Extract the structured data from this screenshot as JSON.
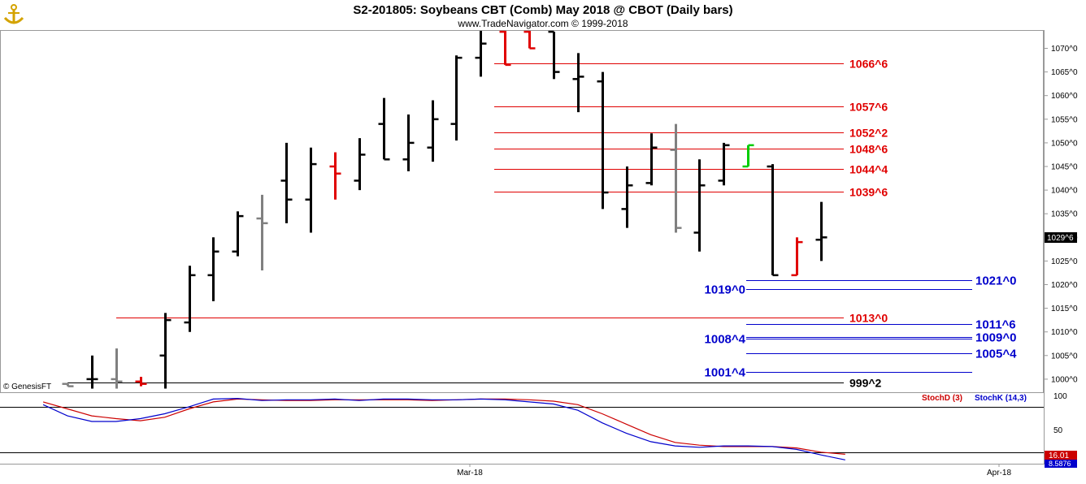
{
  "header": {
    "title": "S2-201805:  Soybeans CBT (Comb) May 2018 @ CBOT  (Daily bars)",
    "subtitle": "www.TradeNavigator.com © 1999-2018",
    "logo_icon": "anchor-logo-icon"
  },
  "watermark": "© GenesisFT",
  "price_axis": {
    "ticks": [
      "1070^0",
      "1065^0",
      "1060^0",
      "1055^0",
      "1050^0",
      "1045^0",
      "1040^0",
      "1035^0",
      "1030^0",
      "1025^0",
      "1020^0",
      "1015^0",
      "1010^0",
      "1005^0",
      "1000^0"
    ],
    "current_price_label": "1029^6"
  },
  "stoch_axis": {
    "ticks": [
      "100",
      "50"
    ],
    "stoch_d_value": "16.01",
    "stoch_k_value": "8.5876"
  },
  "x_axis": {
    "labels": [
      "Mar-18",
      "Apr-18"
    ]
  },
  "legend": {
    "stoch_d": "StochD (3)",
    "stoch_k": "StochK (14,3)"
  },
  "colors": {
    "bar_up": "#000000",
    "bar_down_red": "#e00000",
    "bar_gray": "#808080",
    "bar_green": "#00cc00",
    "resistance": "#e00000",
    "support": "#0000cc",
    "stoch_d": "#cc0000",
    "stoch_k": "#0000cc"
  },
  "chart_data": {
    "type": "ohlc",
    "title": "S2-201805:  Soybeans CBT (Comb) May 2018 @ CBOT  (Daily bars)",
    "ylim": [
      998,
      1073
    ],
    "price_levels": [
      {
        "label": "1066^6",
        "value": 1066.75,
        "color": "red",
        "x_start": 20,
        "x_end": 35
      },
      {
        "label": "1057^6",
        "value": 1057.75,
        "color": "red",
        "x_start": 20,
        "x_end": 35
      },
      {
        "label": "1052^2",
        "value": 1052.25,
        "color": "red",
        "x_start": 20,
        "x_end": 35
      },
      {
        "label": "1048^6",
        "value": 1048.75,
        "color": "red",
        "x_start": 20,
        "x_end": 35
      },
      {
        "label": "1044^4",
        "value": 1044.5,
        "color": "red",
        "x_start": 20,
        "x_end": 35
      },
      {
        "label": "1039^6",
        "value": 1039.75,
        "color": "red",
        "x_start": 20,
        "x_end": 35
      },
      {
        "label": "1013^0",
        "value": 1013.0,
        "color": "red",
        "x_start": 4,
        "x_end": 35
      },
      {
        "label": "999^2",
        "value": 999.25,
        "color": "black",
        "x_start": 0,
        "x_end": 35
      },
      {
        "label": "1021^0",
        "value": 1021.0,
        "color": "blue",
        "x_start": 30,
        "x_end": 40,
        "label_side": "right"
      },
      {
        "label": "1019^0",
        "value": 1019.0,
        "color": "blue",
        "x_start": 30,
        "x_end": 40,
        "label_side": "left"
      },
      {
        "label": "1011^6",
        "value": 1011.75,
        "color": "blue",
        "x_start": 30,
        "x_end": 40,
        "label_side": "right"
      },
      {
        "label": "1009^0",
        "value": 1009.0,
        "color": "blue",
        "x_start": 30,
        "x_end": 40,
        "label_side": "right"
      },
      {
        "label": "1008^4",
        "value": 1008.5,
        "color": "blue",
        "x_start": 30,
        "x_end": 40,
        "label_side": "left"
      },
      {
        "label": "1005^4",
        "value": 1005.5,
        "color": "blue",
        "x_start": 30,
        "x_end": 40,
        "label_side": "right"
      },
      {
        "label": "1001^4",
        "value": 1001.5,
        "color": "blue",
        "x_start": 30,
        "x_end": 40,
        "label_side": "left"
      }
    ],
    "bars": [
      {
        "i": 0,
        "o": 999,
        "h": 999,
        "l": 998.5,
        "c": 998.5,
        "color": "gray"
      },
      {
        "i": 1,
        "o": 1000,
        "h": 1005,
        "l": 998,
        "c": 1000,
        "color": "black"
      },
      {
        "i": 2,
        "o": 1000,
        "h": 1006.5,
        "l": 998,
        "c": 999.5,
        "color": "gray"
      },
      {
        "i": 3,
        "o": 999.5,
        "h": 1000.5,
        "l": 998.5,
        "c": 999,
        "color": "red"
      },
      {
        "i": 4,
        "o": 1005,
        "h": 1014,
        "l": 998,
        "c": 1012.5,
        "color": "black"
      },
      {
        "i": 5,
        "o": 1012,
        "h": 1024,
        "l": 1010,
        "c": 1022,
        "color": "black"
      },
      {
        "i": 6,
        "o": 1022,
        "h": 1030,
        "l": 1016.5,
        "c": 1027,
        "color": "black"
      },
      {
        "i": 7,
        "o": 1027,
        "h": 1035.5,
        "l": 1026,
        "c": 1034.5,
        "color": "black"
      },
      {
        "i": 8,
        "o": 1034,
        "h": 1039,
        "l": 1023,
        "c": 1033,
        "color": "gray"
      },
      {
        "i": 9,
        "o": 1042,
        "h": 1050,
        "l": 1033,
        "c": 1038,
        "color": "black"
      },
      {
        "i": 10,
        "o": 1038,
        "h": 1049,
        "l": 1031,
        "c": 1045.5,
        "color": "black"
      },
      {
        "i": 11,
        "o": 1045,
        "h": 1048,
        "l": 1038,
        "c": 1043.5,
        "color": "red"
      },
      {
        "i": 12,
        "o": 1042,
        "h": 1051,
        "l": 1040,
        "c": 1047.5,
        "color": "black"
      },
      {
        "i": 13,
        "o": 1054,
        "h": 1059.5,
        "l": 1046.5,
        "c": 1046.5,
        "color": "black"
      },
      {
        "i": 14,
        "o": 1046.5,
        "h": 1056,
        "l": 1044,
        "c": 1050,
        "color": "black"
      },
      {
        "i": 15,
        "o": 1049,
        "h": 1059,
        "l": 1046,
        "c": 1055,
        "color": "black"
      },
      {
        "i": 16,
        "o": 1054,
        "h": 1068.5,
        "l": 1050.5,
        "c": 1068,
        "color": "black"
      },
      {
        "i": 17,
        "o": 1068,
        "h": 1074,
        "l": 1064,
        "c": 1071,
        "color": "black"
      },
      {
        "i": 18,
        "o": 1073.5,
        "h": 1074,
        "l": 1066.5,
        "c": 1066.5,
        "color": "red"
      },
      {
        "i": 19,
        "o": 1073.5,
        "h": 1074,
        "l": 1070,
        "c": 1070,
        "color": "red"
      },
      {
        "i": 20,
        "o": 1073.5,
        "h": 1073.5,
        "l": 1063.5,
        "c": 1065,
        "color": "black"
      },
      {
        "i": 21,
        "o": 1063.5,
        "h": 1069,
        "l": 1056.5,
        "c": 1064,
        "color": "black"
      },
      {
        "i": 22,
        "o": 1063,
        "h": 1065,
        "l": 1036,
        "c": 1039.5,
        "color": "black"
      },
      {
        "i": 23,
        "o": 1036,
        "h": 1045,
        "l": 1032,
        "c": 1041,
        "color": "black"
      },
      {
        "i": 24,
        "o": 1041.5,
        "h": 1052,
        "l": 1041,
        "c": 1049,
        "color": "black"
      },
      {
        "i": 25,
        "o": 1048.5,
        "h": 1054,
        "l": 1031,
        "c": 1032,
        "color": "gray"
      },
      {
        "i": 26,
        "o": 1031,
        "h": 1046.5,
        "l": 1027,
        "c": 1041,
        "color": "black"
      },
      {
        "i": 27,
        "o": 1042,
        "h": 1050,
        "l": 1041,
        "c": 1049.5,
        "color": "black"
      },
      {
        "i": 28,
        "o": 1045,
        "h": 1049.5,
        "l": 1045,
        "c": 1049.5,
        "color": "green"
      },
      {
        "i": 29,
        "o": 1045,
        "h": 1045.5,
        "l": 1022,
        "c": 1022,
        "color": "black"
      },
      {
        "i": 30,
        "o": 1022,
        "h": 1030,
        "l": 1022,
        "c": 1029,
        "color": "red"
      },
      {
        "i": 31,
        "o": 1029.5,
        "h": 1037.5,
        "l": 1025,
        "c": 1030,
        "color": "black"
      }
    ],
    "stochastic": {
      "ylim": [
        0,
        100
      ],
      "stoch_d": [
        {
          "i": -1,
          "v": 92
        },
        {
          "i": 0,
          "v": 82
        },
        {
          "i": 1,
          "v": 72
        },
        {
          "i": 2,
          "v": 68
        },
        {
          "i": 3,
          "v": 65
        },
        {
          "i": 4,
          "v": 70
        },
        {
          "i": 5,
          "v": 82
        },
        {
          "i": 6,
          "v": 92
        },
        {
          "i": 7,
          "v": 96
        },
        {
          "i": 8,
          "v": 95
        },
        {
          "i": 9,
          "v": 94
        },
        {
          "i": 10,
          "v": 94
        },
        {
          "i": 11,
          "v": 95
        },
        {
          "i": 12,
          "v": 95
        },
        {
          "i": 13,
          "v": 95
        },
        {
          "i": 14,
          "v": 95
        },
        {
          "i": 15,
          "v": 94
        },
        {
          "i": 16,
          "v": 95
        },
        {
          "i": 17,
          "v": 96
        },
        {
          "i": 18,
          "v": 96
        },
        {
          "i": 19,
          "v": 95
        },
        {
          "i": 20,
          "v": 93
        },
        {
          "i": 21,
          "v": 88
        },
        {
          "i": 22,
          "v": 75
        },
        {
          "i": 23,
          "v": 60
        },
        {
          "i": 24,
          "v": 45
        },
        {
          "i": 25,
          "v": 34
        },
        {
          "i": 26,
          "v": 30
        },
        {
          "i": 27,
          "v": 28
        },
        {
          "i": 28,
          "v": 28
        },
        {
          "i": 29,
          "v": 28
        },
        {
          "i": 30,
          "v": 26
        },
        {
          "i": 31,
          "v": 20
        },
        {
          "i": 32,
          "v": 17
        }
      ],
      "stoch_k": [
        {
          "i": -1,
          "v": 88
        },
        {
          "i": 0,
          "v": 72
        },
        {
          "i": 1,
          "v": 64
        },
        {
          "i": 2,
          "v": 64
        },
        {
          "i": 3,
          "v": 68
        },
        {
          "i": 4,
          "v": 75
        },
        {
          "i": 5,
          "v": 85
        },
        {
          "i": 6,
          "v": 96
        },
        {
          "i": 7,
          "v": 97
        },
        {
          "i": 8,
          "v": 94
        },
        {
          "i": 9,
          "v": 95
        },
        {
          "i": 10,
          "v": 95
        },
        {
          "i": 11,
          "v": 96
        },
        {
          "i": 12,
          "v": 94
        },
        {
          "i": 13,
          "v": 96
        },
        {
          "i": 14,
          "v": 96
        },
        {
          "i": 15,
          "v": 95
        },
        {
          "i": 16,
          "v": 95
        },
        {
          "i": 17,
          "v": 96
        },
        {
          "i": 18,
          "v": 95
        },
        {
          "i": 19,
          "v": 92
        },
        {
          "i": 20,
          "v": 89
        },
        {
          "i": 21,
          "v": 80
        },
        {
          "i": 22,
          "v": 62
        },
        {
          "i": 23,
          "v": 47
        },
        {
          "i": 24,
          "v": 35
        },
        {
          "i": 25,
          "v": 29
        },
        {
          "i": 26,
          "v": 27
        },
        {
          "i": 27,
          "v": 29
        },
        {
          "i": 28,
          "v": 29
        },
        {
          "i": 29,
          "v": 28
        },
        {
          "i": 30,
          "v": 24
        },
        {
          "i": 31,
          "v": 16
        },
        {
          "i": 32,
          "v": 9
        }
      ]
    }
  }
}
